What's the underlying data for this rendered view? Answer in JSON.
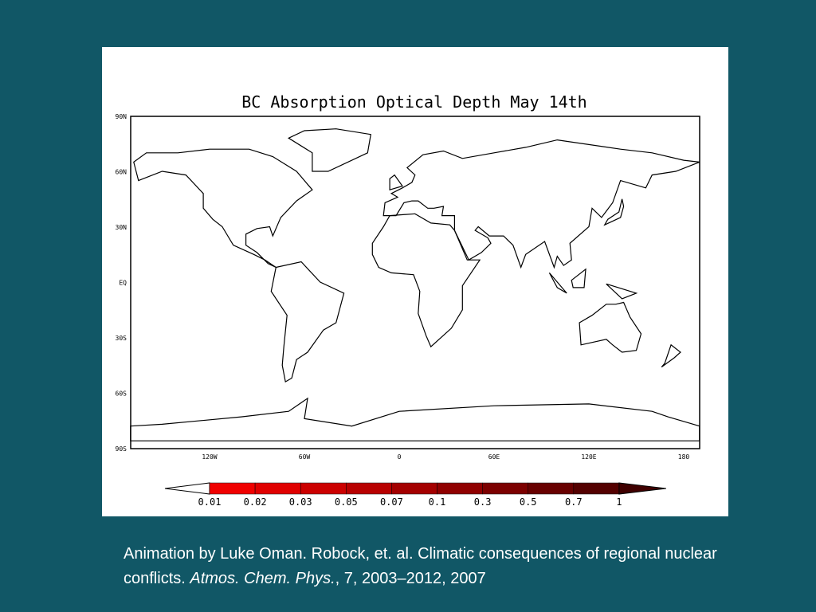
{
  "figure": {
    "title": "BC Absorption Optical Depth May 14th",
    "lat_labels": [
      "90N",
      "60N",
      "30N",
      "EQ",
      "30S",
      "60S",
      "90S"
    ],
    "lon_labels": [
      "120W",
      "60W",
      "0",
      "60E",
      "120E",
      "180"
    ],
    "colorbar_labels": [
      "0.01",
      "0.02",
      "0.03",
      "0.05",
      "0.07",
      "0.1",
      "0.3",
      "0.5",
      "0.7",
      "1"
    ]
  },
  "caption": {
    "part1": "Animation by Luke Oman. Robock, et. al. Climatic consequences of regional nuclear conflicts.",
    "journal": "Atmos. Chem. Phys.",
    "part2": ", 7, 2003–2012, 2007"
  }
}
